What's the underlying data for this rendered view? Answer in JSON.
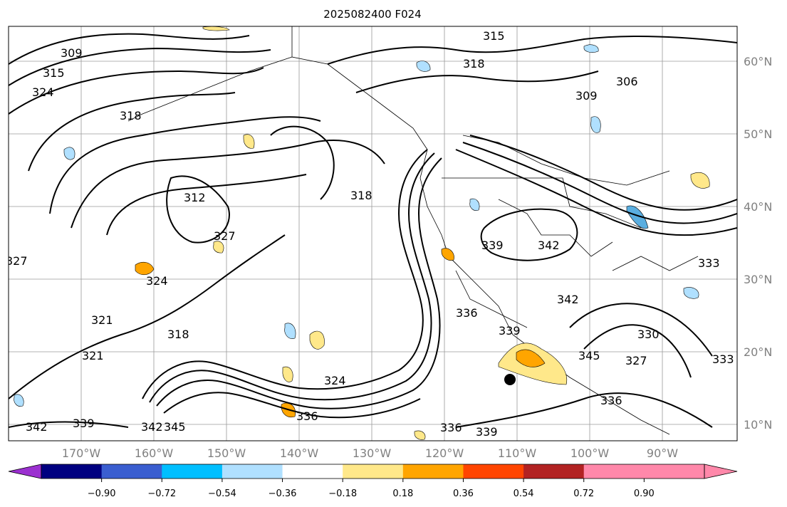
{
  "title": "2025082400 F024",
  "axes": {
    "lat_ticks": [
      "60°N",
      "50°N",
      "40°N",
      "30°N",
      "20°N",
      "10°N"
    ],
    "lon_ticks": [
      "170°W",
      "160°W",
      "150°W",
      "140°W",
      "130°W",
      "120°W",
      "110°W",
      "100°W",
      "90°W"
    ]
  },
  "colorbar": {
    "ticks": [
      "−0.90",
      "−0.72",
      "−0.54",
      "−0.36",
      "−0.18",
      "0.18",
      "0.36",
      "0.54",
      "0.72",
      "0.90"
    ],
    "colors": [
      "#9b30d0",
      "#000080",
      "#3a5ed0",
      "#00bfff",
      "#b0e0ff",
      "#ffffff",
      "#ffe88a",
      "#ffa500",
      "#ff4500",
      "#b22222",
      "#ff88aa",
      "#ff88aa"
    ]
  },
  "contour_labels": [
    "309",
    "315",
    "324",
    "318",
    "312",
    "327",
    "321",
    "324",
    "327",
    "339",
    "342",
    "315",
    "318",
    "309",
    "306",
    "318",
    "339",
    "342",
    "336",
    "342",
    "330",
    "345",
    "327",
    "336",
    "336",
    "339",
    "333",
    "339",
    "336",
    "333",
    "342",
    "345",
    "321",
    "324",
    "318"
  ],
  "shading_colors": {
    "positive_light": "#ffe88a",
    "positive_mid": "#ffa500",
    "negative_light": "#b0e0ff",
    "negative_mid": "#5aaee0"
  }
}
